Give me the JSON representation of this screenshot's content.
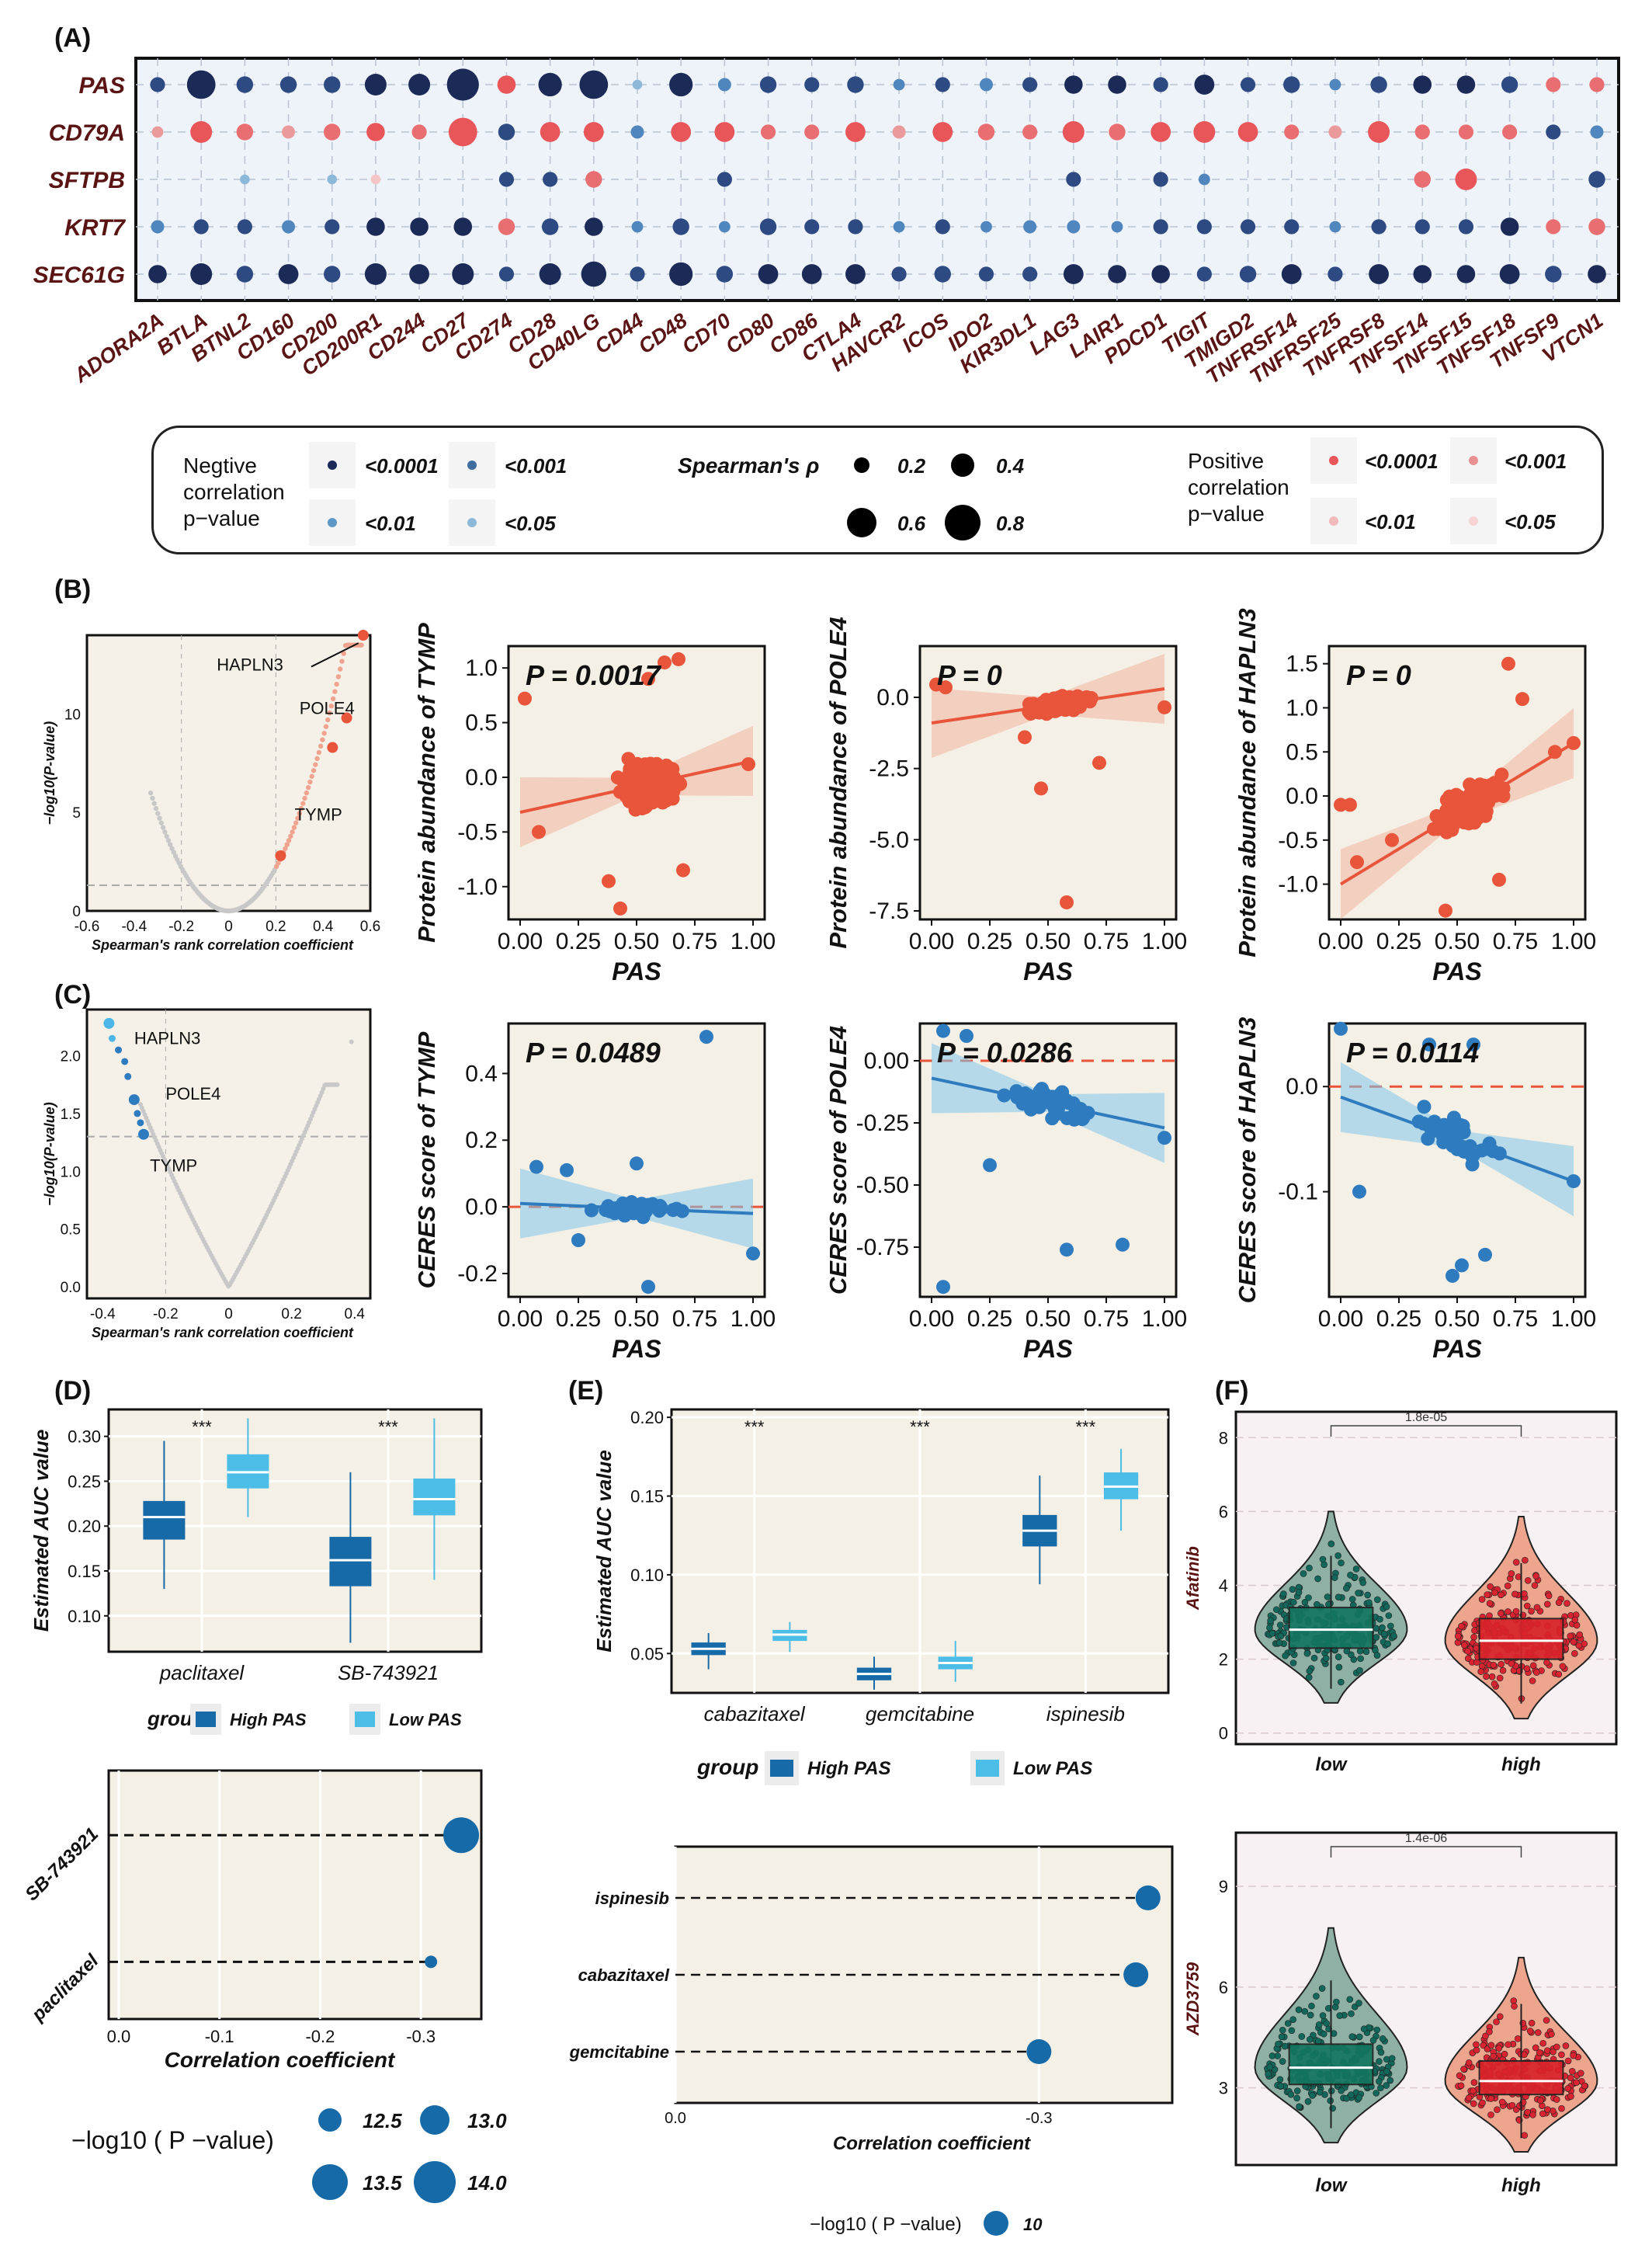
{
  "panels": {
    "A": "(A)",
    "B": "(B)",
    "C": "(C)",
    "D": "(D)",
    "E": "(E)",
    "F": "(F)"
  },
  "colors": {
    "neg": "#1b2a57",
    "pos": "#e8565a",
    "orange": "#e8553b",
    "blue": "#2f7bbf",
    "dark_blue": "#166aa8",
    "light_blue": "#4cbde6",
    "panel_bg": "#f5f0e6",
    "teal": "#14765f",
    "red": "#d9232a"
  },
  "legend": {
    "neg_title_1": "Negtive",
    "neg_title_2": "correlation",
    "neg_title_3": "p−value",
    "pos_title_1": "Positive",
    "pos_title_2": "correlation",
    "pos_title_3": "p−value",
    "rho_title": "Spearman's ρ",
    "neg_items": [
      "<0.0001",
      "<0.001",
      "<0.01",
      "<0.05"
    ],
    "pos_items": [
      "<0.0001",
      "<0.001",
      "<0.01",
      "<0.05"
    ],
    "size_items": [
      "0.2",
      "0.4",
      "0.6",
      "0.8"
    ]
  },
  "chart_data": [
    {
      "id": "A",
      "type": "scatter",
      "rows": [
        "PAS",
        "CD79A",
        "SFTPB",
        "KRT7",
        "SEC61G"
      ],
      "columns": [
        "ADORA2A",
        "BTLA",
        "BTNL2",
        "CD160",
        "CD200",
        "CD200R1",
        "CD244",
        "CD27",
        "CD274",
        "CD28",
        "CD40LG",
        "CD44",
        "CD48",
        "CD70",
        "CD80",
        "CD86",
        "CTLA4",
        "HAVCR2",
        "ICOS",
        "IDO2",
        "KIR3DL1",
        "LAG3",
        "LAIR1",
        "PDCD1",
        "TIGIT",
        "TMIGD2",
        "TNFRSF14",
        "TNFRSF25",
        "TNFRSF8",
        "TNFSF14",
        "TNFSF15",
        "TNFSF18",
        "TNFSF9",
        "VTCN1"
      ],
      "rho": [
        [
          -0.3,
          -0.7,
          -0.35,
          -0.35,
          -0.35,
          -0.5,
          -0.5,
          -0.8,
          0.4,
          -0.55,
          -0.7,
          -0.15,
          -0.55,
          -0.25,
          -0.35,
          -0.3,
          -0.35,
          -0.2,
          -0.3,
          -0.25,
          -0.3,
          -0.4,
          -0.4,
          -0.3,
          -0.45,
          -0.3,
          -0.35,
          -0.2,
          -0.35,
          -0.4,
          -0.4,
          -0.35,
          0.3,
          0.3
        ],
        [
          0.2,
          0.5,
          0.35,
          0.25,
          0.35,
          0.4,
          0.3,
          0.7,
          -0.35,
          0.45,
          0.45,
          -0.25,
          0.45,
          0.45,
          0.3,
          0.3,
          0.45,
          0.25,
          0.45,
          0.35,
          0.3,
          0.5,
          0.35,
          0.45,
          0.5,
          0.45,
          0.3,
          0.25,
          0.5,
          0.3,
          0.3,
          0.3,
          -0.3,
          -0.25
        ],
        [
          0,
          0,
          -0.15,
          0,
          -0.15,
          0.15,
          0,
          0,
          -0.3,
          -0.3,
          0.35,
          0,
          0,
          -0.3,
          0,
          0,
          0,
          0,
          0,
          0,
          0,
          -0.3,
          0,
          -0.3,
          -0.2,
          0,
          0,
          0,
          0,
          0.35,
          0.5,
          0,
          0,
          -0.35
        ],
        [
          -0.25,
          -0.3,
          -0.3,
          -0.25,
          -0.3,
          -0.4,
          -0.4,
          -0.4,
          0.35,
          -0.35,
          -0.4,
          -0.2,
          -0.35,
          -0.2,
          -0.35,
          -0.3,
          -0.3,
          -0.2,
          -0.3,
          -0.2,
          -0.25,
          -0.25,
          -0.2,
          -0.3,
          -0.3,
          -0.3,
          -0.3,
          -0.2,
          -0.3,
          -0.3,
          -0.3,
          -0.4,
          0.3,
          0.35
        ],
        [
          -0.4,
          -0.5,
          -0.35,
          -0.45,
          -0.35,
          -0.5,
          -0.45,
          -0.5,
          -0.3,
          -0.5,
          -0.6,
          -0.3,
          -0.55,
          -0.35,
          -0.45,
          -0.45,
          -0.45,
          -0.3,
          -0.35,
          -0.3,
          -0.3,
          -0.45,
          -0.4,
          -0.4,
          -0.3,
          -0.35,
          -0.45,
          -0.3,
          -0.45,
          -0.4,
          -0.4,
          -0.45,
          -0.35,
          -0.4
        ]
      ]
    },
    {
      "id": "B-volcano",
      "type": "scatter",
      "xlabel": "Spearman's rank correlation coefficient",
      "ylabel": "−log10(P-value)",
      "xlim": [
        -0.6,
        0.6
      ],
      "ylim": [
        0,
        14
      ],
      "xticks": [
        "-0.6",
        "-0.4",
        "-0.2",
        "0",
        "0.2",
        "0.4",
        "0.6"
      ],
      "yticks": [
        "0",
        "5",
        "10"
      ],
      "labels": [
        {
          "text": "HAPLN3",
          "x": 0.57,
          "y": 14.0
        },
        {
          "text": "POLE4",
          "x": 0.5,
          "y": 9.8
        },
        {
          "text": "TYMP",
          "x": 0.22,
          "y": 2.8
        }
      ]
    },
    {
      "id": "B-TYMP",
      "type": "scatter",
      "title": "P = 0.0017",
      "xlabel": "PAS",
      "ylabel": "Protein abundance of TYMP",
      "xlim": [
        -0.05,
        1.05
      ],
      "ylim": [
        -1.3,
        1.2
      ],
      "xticks": [
        "0.00",
        "0.25",
        "0.50",
        "0.75",
        "1.00"
      ],
      "yticks": [
        "-1.0",
        "-0.5",
        "0.0",
        "0.5",
        "1.0"
      ],
      "fit": [
        0,
        -0.32,
        1,
        0.15
      ]
    },
    {
      "id": "B-POLE4",
      "type": "scatter",
      "title": "P = 0",
      "xlabel": "PAS",
      "ylabel": "Protein abundance of POLE4",
      "xlim": [
        -0.05,
        1.05
      ],
      "ylim": [
        -7.8,
        1.8
      ],
      "xticks": [
        "0.00",
        "0.25",
        "0.50",
        "0.75",
        "1.00"
      ],
      "yticks": [
        "-7.5",
        "-5.0",
        "-2.5",
        "0.0"
      ],
      "fit": [
        0,
        -0.9,
        1,
        0.3
      ]
    },
    {
      "id": "B-HAPLN3",
      "type": "scatter",
      "title": "P = 0",
      "xlabel": "PAS",
      "ylabel": "Protein abundance of HAPLN3",
      "xlim": [
        -0.05,
        1.05
      ],
      "ylim": [
        -1.4,
        1.7
      ],
      "xticks": [
        "0.00",
        "0.25",
        "0.50",
        "0.75",
        "1.00"
      ],
      "yticks": [
        "-1.0",
        "-0.5",
        "0.0",
        "0.5",
        "1.0",
        "1.5"
      ],
      "fit": [
        0,
        -1.0,
        1,
        0.6
      ]
    },
    {
      "id": "C-volcano",
      "type": "scatter",
      "xlabel": "Spearman's rank correlation coefficient",
      "ylabel": "−log10(P-value)",
      "xlim": [
        -0.45,
        0.45
      ],
      "ylim": [
        -0.1,
        2.4
      ],
      "xticks": [
        "-0.4",
        "-0.2",
        "0",
        "0.2",
        "0.4"
      ],
      "yticks": [
        "0.0",
        "0.5",
        "1.0",
        "1.5",
        "2.0"
      ],
      "labels": [
        {
          "text": "HAPLN3",
          "x": -0.38,
          "y": 2.1
        },
        {
          "text": "POLE4",
          "x": -0.29,
          "y": 1.62
        },
        {
          "text": "TYMP",
          "x": -0.28,
          "y": 1.3
        }
      ]
    },
    {
      "id": "C-TYMP",
      "type": "scatter",
      "title": "P = 0.0489",
      "xlabel": "PAS",
      "ylabel": "CERES score of TYMP",
      "xlim": [
        -0.05,
        1.05
      ],
      "ylim": [
        -0.27,
        0.55
      ],
      "xticks": [
        "0.00",
        "0.25",
        "0.50",
        "0.75",
        "1.00"
      ],
      "yticks": [
        "-0.2",
        "0.0",
        "0.2",
        "0.4"
      ],
      "fit": [
        0,
        0.01,
        1,
        -0.02
      ]
    },
    {
      "id": "C-POLE4",
      "type": "scatter",
      "title": "P = 0.0286",
      "xlabel": "PAS",
      "ylabel": "CERES score of POLE4",
      "xlim": [
        -0.05,
        1.05
      ],
      "ylim": [
        -0.95,
        0.15
      ],
      "xticks": [
        "0.00",
        "0.25",
        "0.50",
        "0.75",
        "1.00"
      ],
      "yticks": [
        "-0.75",
        "-0.50",
        "-0.25",
        "0.00"
      ],
      "fit": [
        0,
        -0.07,
        1,
        -0.27
      ]
    },
    {
      "id": "C-HAPLN3",
      "type": "scatter",
      "title": "P = 0.0114",
      "xlabel": "PAS",
      "ylabel": "CERES score of HAPLN3",
      "xlim": [
        -0.05,
        1.05
      ],
      "ylim": [
        -0.2,
        0.06
      ],
      "xticks": [
        "0.00",
        "0.25",
        "0.50",
        "0.75",
        "1.00"
      ],
      "yticks": [
        "-0.1",
        "0.0"
      ],
      "fit": [
        0,
        -0.01,
        1,
        -0.09
      ]
    },
    {
      "id": "D-box",
      "type": "bar",
      "categories": [
        "paclitaxel",
        "SB-743921"
      ],
      "ylabel": "Estimated AUC value",
      "ylim": [
        0.06,
        0.33
      ],
      "yticks": [
        "0.10",
        "0.15",
        "0.20",
        "0.25",
        "0.30"
      ],
      "sig": [
        "***",
        "***"
      ],
      "series": [
        {
          "name": "High PAS",
          "boxes": [
            [
              0.13,
              0.185,
              0.21,
              0.228,
              0.295
            ],
            [
              0.07,
              0.133,
              0.162,
              0.188,
              0.26
            ]
          ]
        },
        {
          "name": "Low PAS",
          "boxes": [
            [
              0.21,
              0.242,
              0.26,
              0.28,
              0.32
            ],
            [
              0.14,
              0.212,
              0.23,
              0.253,
              0.32
            ]
          ]
        }
      ],
      "legend_title": "group"
    },
    {
      "id": "D-lollipop",
      "type": "scatter",
      "categories": [
        "SB-743921",
        "paclitaxel"
      ],
      "xlabel": "Correlation coefficient",
      "x": [
        -0.34,
        -0.31
      ],
      "size": [
        14.0,
        12.5
      ],
      "xlim": [
        0.01,
        -0.36
      ],
      "xticks": [
        "0.0",
        "-0.1",
        "-0.2",
        "-0.3"
      ],
      "size_title": "−log10 ( P −value)",
      "size_items": [
        "12.5",
        "13.0",
        "13.5",
        "14.0"
      ]
    },
    {
      "id": "E-box",
      "type": "bar",
      "categories": [
        "cabazitaxel",
        "gemcitabine",
        "ispinesib"
      ],
      "ylabel": "Estimated AUC value",
      "ylim": [
        0.025,
        0.205
      ],
      "yticks": [
        "0.05",
        "0.10",
        "0.15",
        "0.20"
      ],
      "sig": [
        "***",
        "***",
        "***"
      ],
      "series": [
        {
          "name": "High PAS",
          "boxes": [
            [
              0.04,
              0.049,
              0.053,
              0.057,
              0.063
            ],
            [
              0.027,
              0.033,
              0.037,
              0.041,
              0.048
            ]
          ]
        },
        {
          "name": "Low PAS",
          "boxes": [
            [
              0.051,
              0.058,
              0.062,
              0.065,
              0.07
            ],
            [
              0.032,
              0.04,
              0.044,
              0.048,
              0.058
            ]
          ]
        }
      ],
      "boxes_ispinesib": [
        [
          0.094,
          0.118,
          0.128,
          0.138,
          0.163
        ],
        [
          0.128,
          0.148,
          0.156,
          0.165,
          0.18
        ]
      ],
      "legend_title": "group"
    },
    {
      "id": "E-lollipop",
      "type": "scatter",
      "categories": [
        "ispinesib",
        "cabazitaxel",
        "gemcitabine"
      ],
      "xlabel": "Correlation coefficient",
      "x": [
        -0.39,
        -0.38,
        -0.3
      ],
      "xlim": [
        0.0,
        -0.41
      ],
      "xticks": [
        "0.0",
        "-0.3"
      ],
      "size_title": "−log10 ( P −value)",
      "size_items": [
        "10"
      ]
    },
    {
      "id": "F-Afatinib",
      "type": "bar",
      "categories": [
        "low",
        "high"
      ],
      "ylabel": "Afatinib",
      "ylim": [
        -0.3,
        8.7
      ],
      "yticks": [
        "0",
        "2",
        "4",
        "6",
        "8"
      ],
      "pvalue": "1.8e-05",
      "boxes": [
        [
          1.2,
          2.3,
          2.8,
          3.4,
          4.8
        ],
        [
          0.8,
          2.0,
          2.5,
          3.1,
          4.6
        ]
      ]
    },
    {
      "id": "F-AZD3759",
      "type": "bar",
      "categories": [
        "low",
        "high"
      ],
      "ylabel": "AZD3759",
      "ylim": [
        0.7,
        10.6
      ],
      "yticks": [
        "3",
        "6",
        "9"
      ],
      "pvalue": "1.4e-06",
      "boxes": [
        [
          1.8,
          3.1,
          3.6,
          4.3,
          6.2
        ],
        [
          1.5,
          2.8,
          3.2,
          3.8,
          5.5
        ]
      ]
    }
  ]
}
